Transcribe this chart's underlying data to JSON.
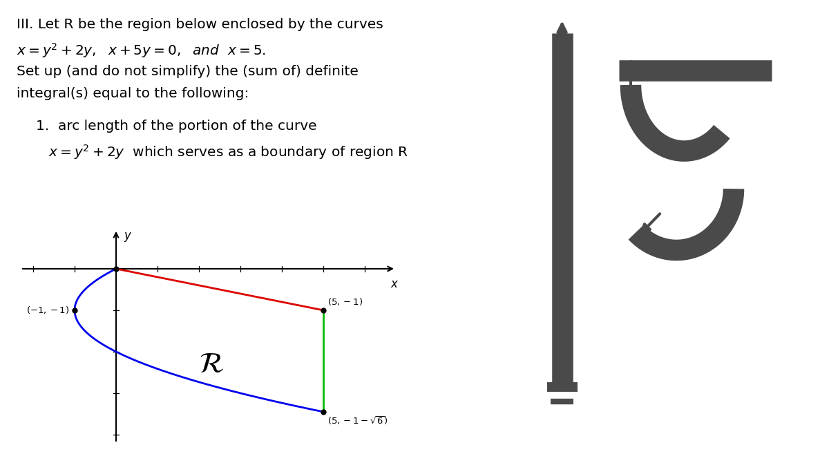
{
  "title_line1": "III. Let R be the region below enclosed by the curves",
  "body_line1": "Set up (and do not simplify) the (sum of) definite",
  "body_line2": "integral(s) equal to the following:",
  "item1_line1": "1.  arc length of the portion of the curve",
  "curve_color": "#0000ee",
  "line_color": "#dd0000",
  "vert_color": "#00bb00",
  "dot_color": "#000000",
  "text_color": "#000000",
  "bg_color": "#ffffff",
  "gray_symbol": "#4a4a4a",
  "sqrt6": 2.449,
  "x_range": [
    -2.3,
    6.8
  ],
  "y_range": [
    -4.2,
    1.0
  ]
}
